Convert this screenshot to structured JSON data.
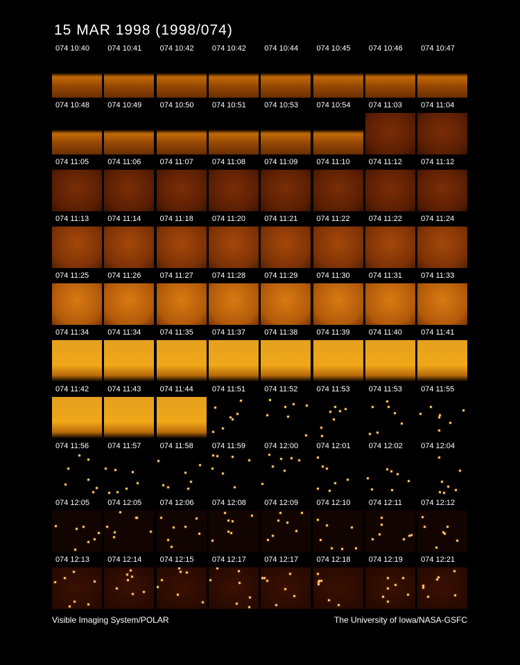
{
  "header": {
    "title": "15 MAR 1998  (1998/074)"
  },
  "frames": {
    "labels": [
      "074 10:40",
      "074 10:41",
      "074 10:42",
      "074 10:42",
      "074 10:44",
      "074 10:45",
      "074 10:46",
      "074 10:47",
      "074 10:48",
      "074 10:49",
      "074 10:50",
      "074 10:51",
      "074 10:53",
      "074 10:54",
      "074 11:03",
      "074 11:04",
      "074 11:05",
      "074 11:06",
      "074 11:07",
      "074 11:08",
      "074 11:09",
      "074 11:10",
      "074 11:12",
      "074 11:12",
      "074 11:13",
      "074 11:14",
      "074 11:18",
      "074 11:20",
      "074 11:21",
      "074 11:22",
      "074 11:22",
      "074 11:24",
      "074 11:25",
      "074 11:26",
      "074 11:27",
      "074 11:28",
      "074 11:29",
      "074 11:30",
      "074 11:31",
      "074 11:33",
      "074 11:34",
      "074 11:34",
      "074 11:35",
      "074 11:37",
      "074 11:38",
      "074 11:39",
      "074 11:40",
      "074 11:41",
      "074 11:42",
      "074 11:43",
      "074 11:44",
      "074 11:51",
      "074 11:52",
      "074 11:53",
      "074 11:53",
      "074 11:55",
      "074 11:56",
      "074 11:57",
      "074 11:58",
      "074 11:59",
      "074 12:00",
      "074 12:01",
      "074 12:02",
      "074 12:04",
      "074 12:05",
      "074 12:05",
      "074 12:06",
      "074 12:08",
      "074 12:09",
      "074 12:10",
      "074 12:11",
      "074 12:12",
      "074 12:13",
      "074 12:14",
      "074 12:15",
      "074 12:17",
      "074 12:17",
      "074 12:18",
      "074 12:19",
      "074 12:21"
    ]
  },
  "footer": {
    "left": "Visible Imaging System/POLAR",
    "right": "The University of Iowa/NASA-GSFC"
  }
}
